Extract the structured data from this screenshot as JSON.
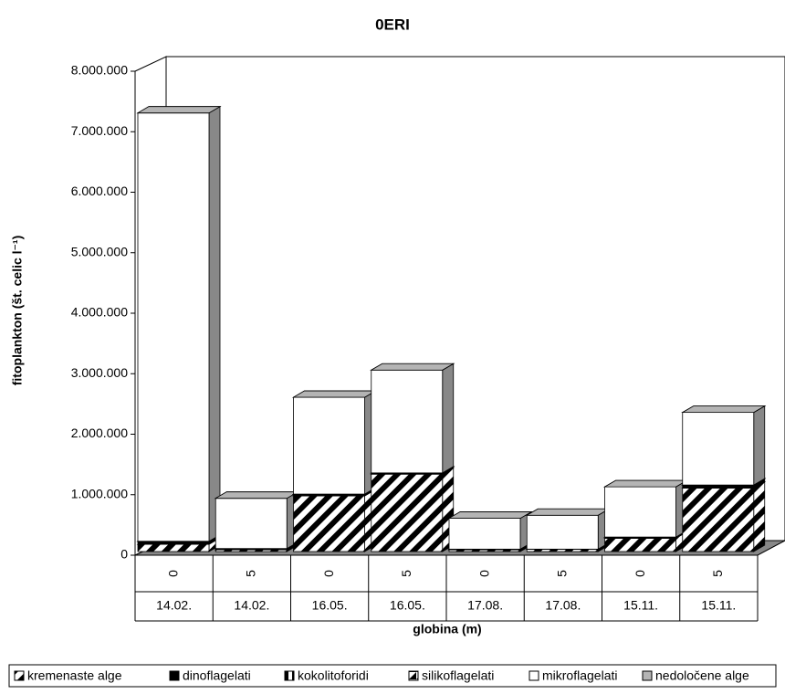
{
  "chart_data": {
    "type": "bar3d-stacked",
    "title": "0ERI",
    "y_label": "fitoplankton (št. celic l⁻¹)",
    "x_label": "globina (m)",
    "categories": [
      "0",
      "5",
      "0",
      "5",
      "0",
      "5",
      "0",
      "5"
    ],
    "groups": [
      "14.02.",
      "14.02.",
      "16.05.",
      "16.05.",
      "17.08.",
      "17.08.",
      "15.11.",
      "15.11."
    ],
    "ylim": [
      0,
      8000000
    ],
    "yticks": [
      0,
      {
        "value": 1000000,
        "label": "1.000.000"
      },
      {
        "value": 2000000,
        "label": "2.000.000"
      },
      {
        "value": 3000000,
        "label": "3.000.000"
      },
      {
        "value": 4000000,
        "label": "4.000.000"
      },
      {
        "value": 5000000,
        "label": "5.000.000"
      },
      {
        "value": 6000000,
        "label": "6.000.000"
      },
      {
        "value": 7000000,
        "label": "7.000.000"
      },
      {
        "value": 8000000,
        "label": "8.000.000"
      }
    ],
    "series": [
      {
        "name": "kremenaste alge",
        "color": "#000000",
        "pattern": "wide-diagonal",
        "values": [
          120000,
          30000,
          920000,
          1280000,
          30000,
          40000,
          220000,
          1050000
        ]
      },
      {
        "name": "dinoflagelati",
        "color": "#000000",
        "pattern": "solid",
        "values": [
          50000,
          20000,
          30000,
          20000,
          10000,
          0,
          20000,
          50000
        ]
      },
      {
        "name": "kokolitoforidi",
        "color": "#000000",
        "pattern": "vertical-half",
        "values": [
          0,
          0,
          0,
          0,
          0,
          0,
          0,
          0
        ]
      },
      {
        "name": "silikoflagelati",
        "color": "#000000",
        "pattern": "diagonal-half",
        "values": [
          0,
          0,
          0,
          0,
          0,
          0,
          0,
          0
        ]
      },
      {
        "name": "mikroflagelati",
        "color": "#ffffff",
        "pattern": "solid",
        "values": [
          7080000,
          830000,
          1600000,
          1700000,
          510000,
          560000,
          830000,
          1200000
        ]
      },
      {
        "name": "nedoločene alge",
        "color": "#b4b4b4",
        "pattern": "solid",
        "values": [
          0,
          0,
          0,
          0,
          0,
          0,
          0,
          0
        ]
      }
    ]
  }
}
